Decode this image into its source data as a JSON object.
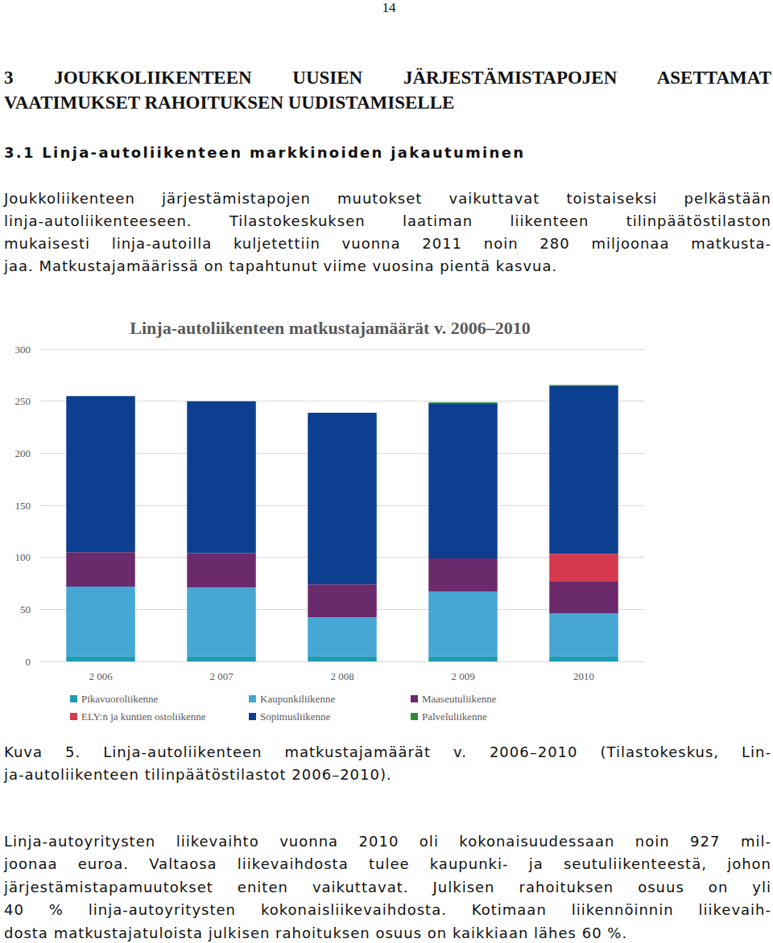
{
  "page_number": "14",
  "heading": [
    "3 JOUKKOLIIKENTEEN UUSIEN JÄRJESTÄMISTAPOJEN ASETTAMAT",
    "VAATIMUKSET RAHOITUKSEN UUDISTAMISELLE"
  ],
  "section_heading": "3.1 Linja-autoliikenteen markkinoiden jakautuminen",
  "paragraph_1": [
    "Joukkoliikenteen järjestämistapojen muutokset vaikuttavat toistaiseksi pelkästään",
    "linja-autoliikenteeseen. Tilastokeskuksen laatiman liikenteen tilinpäätöstilaston",
    "mukaisesti linja-autoilla kuljetettiin vuonna 2011 noin 280 miljoonaa matkusta-",
    "jaa. Matkustajamäärissä on tapahtunut viime vuosina pientä kasvua."
  ],
  "chart_data": {
    "type": "bar",
    "title": "Linja-autoliikenteen matkustajamäärät v. 2006–2010",
    "categories": [
      "2 006",
      "2 007",
      "2 008",
      "2 009",
      "2010"
    ],
    "stacked": true,
    "series": [
      {
        "name": "Pikavuoroliikenne",
        "color": "#1b9bb4",
        "values": [
          5,
          5,
          5,
          5,
          5
        ]
      },
      {
        "name": "Kaupunkiliikenne",
        "color": "#46a6d4",
        "values": [
          67,
          66,
          37.5,
          62,
          41
        ]
      },
      {
        "name": "Maaseutuliikenne",
        "color": "#6b2a6b",
        "values": [
          33,
          33,
          31.5,
          32,
          30.5
        ]
      },
      {
        "name": "ELY:n ja kuntien ostoliikenne",
        "color": "#d6394e",
        "values": [
          0,
          0,
          0,
          0,
          27
        ]
      },
      {
        "name": "Sopimusliikenne",
        "color": "#0c3f8f",
        "values": [
          150,
          146,
          165,
          149,
          161
        ]
      },
      {
        "name": "Palveluliikenne",
        "color": "#2f8a3b",
        "values": [
          0,
          0,
          0,
          1,
          1
        ]
      }
    ],
    "ylim": [
      0,
      300
    ],
    "yticks": [
      0,
      50,
      100,
      150,
      200,
      250,
      300
    ],
    "grid": true,
    "legend": "bottom"
  },
  "caption": [
    "Kuva 5. Linja-autoliikenteen matkustajamäärät v. 2006–2010 (Tilastokeskus, Lin-",
    "ja-autoliikenteen tilinpäätöstilastot 2006–2010)."
  ],
  "paragraph_2": [
    "Linja-autoyritysten liikevaihto vuonna 2010 oli kokonaisuudessaan noin 927 mil-",
    "joonaa euroa. Valtaosa liikevaihdosta tulee kaupunki- ja seutuliikenteestä, johon",
    "järjestämistapamuutokset eniten vaikuttavat. Julkisen rahoituksen osuus on yli",
    "40 % linja-autoyritysten kokonaisliikevaihdosta. Kotimaan liikennöinnin liikevaih-",
    "dosta matkustajatuloista julkisen rahoituksen osuus on kaikkiaan lähes 60 %."
  ]
}
